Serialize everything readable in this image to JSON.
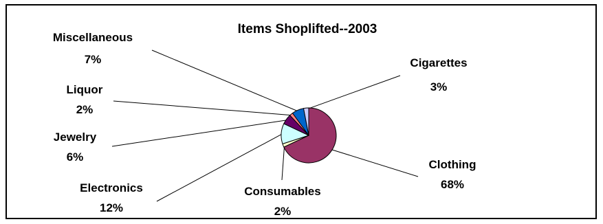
{
  "chart_data": {
    "type": "pie",
    "title": "Items Shoplifted--2003",
    "start_angle_deg": 0,
    "direction": "clockwise",
    "slices": [
      {
        "label": "Clothing",
        "value": 68,
        "value_label": "68%",
        "color": "#993366"
      },
      {
        "label": "Consumables",
        "value": 2,
        "value_label": "2%",
        "color": "#FFFFCC"
      },
      {
        "label": "Electronics",
        "value": 12,
        "value_label": "12%",
        "color": "#CCFFFF"
      },
      {
        "label": "Jewelry",
        "value": 6,
        "value_label": "6%",
        "color": "#660066"
      },
      {
        "label": "Liquor",
        "value": 2,
        "value_label": "2%",
        "color": "#FF8080"
      },
      {
        "label": "Miscellaneous",
        "value": 7,
        "value_label": "7%",
        "color": "#0066CC"
      },
      {
        "label": "Cigarettes",
        "value": 3,
        "value_label": "3%",
        "color": "#CCCCFF"
      }
    ]
  }
}
